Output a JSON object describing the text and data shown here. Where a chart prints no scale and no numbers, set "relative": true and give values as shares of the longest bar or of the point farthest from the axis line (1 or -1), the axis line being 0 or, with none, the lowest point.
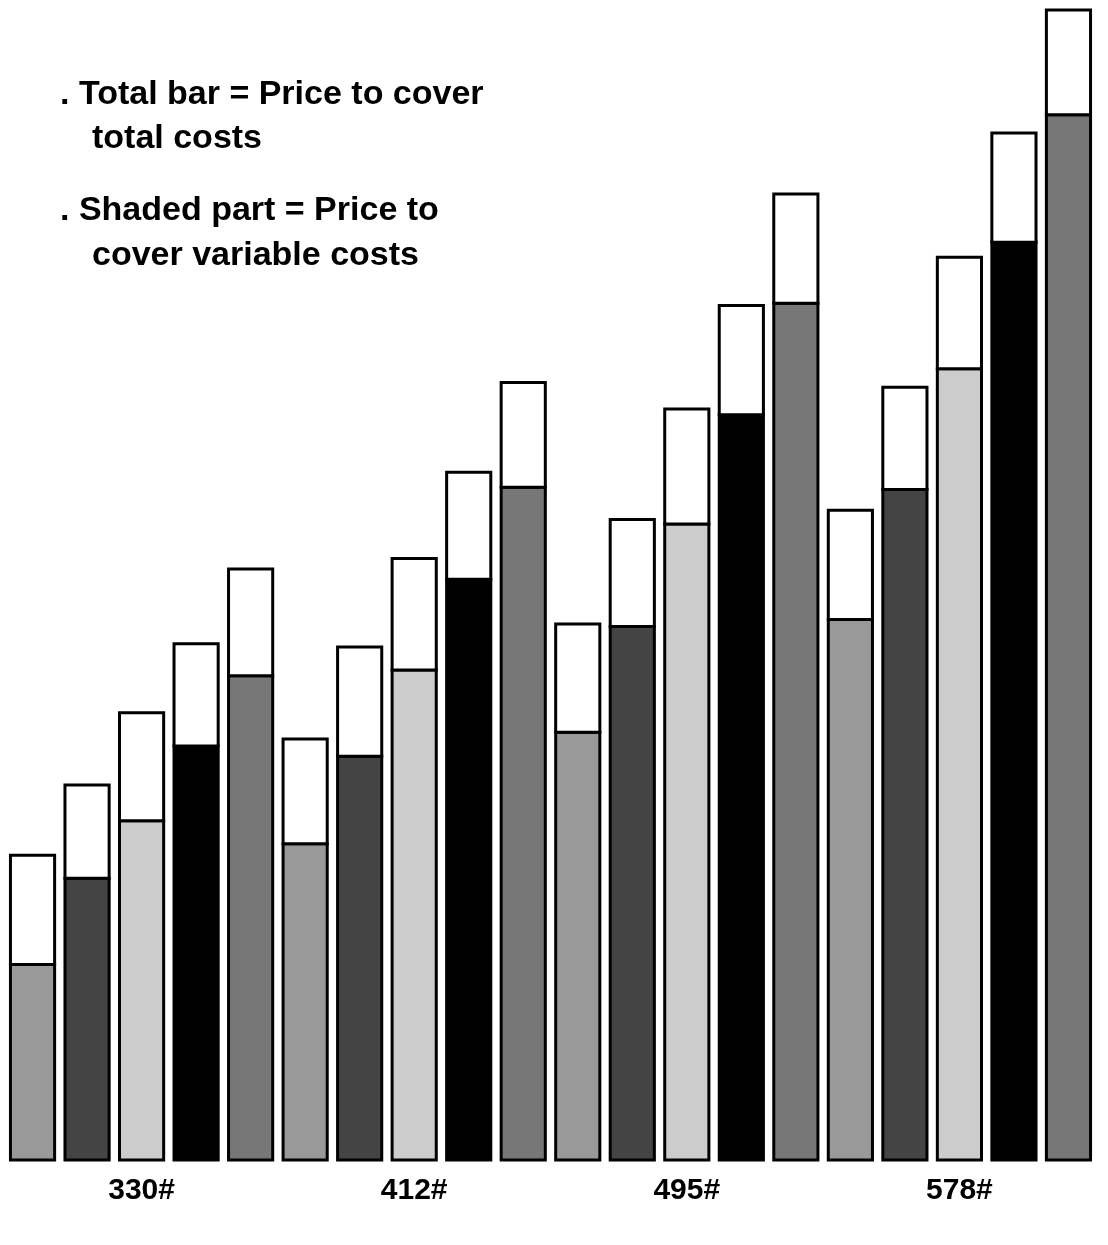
{
  "chart_data": {
    "type": "bar",
    "relative": true,
    "stacked": true,
    "annotations": [
      ". Total bar = Price to cover total costs",
      ". Shaded part = Price to cover variable costs"
    ],
    "categories": [
      null,
      null,
      "330#",
      null,
      null,
      null,
      null,
      "412#",
      null,
      null,
      null,
      null,
      "495#",
      null,
      null,
      null,
      null,
      "578#",
      null,
      null
    ],
    "series": [
      {
        "colors": [
          "#999999",
          "#444444",
          "#cccccc",
          "#000000",
          "#777777",
          "#999999",
          "#444444",
          "#cccccc",
          "#000000",
          "#777777",
          "#999999",
          "#444444",
          "#cccccc",
          "#000000",
          "#777777",
          "#999999",
          "#444444",
          "#cccccc",
          "#000000",
          "#777777"
        ],
        "values": [
          0.17,
          0.245,
          0.295,
          0.36,
          0.421,
          0.275,
          0.351,
          0.426,
          0.505,
          0.585,
          0.372,
          0.464,
          0.553,
          0.648,
          0.745,
          0.47,
          0.583,
          0.688,
          0.798,
          0.909
        ]
      },
      {
        "color": "#ffffff",
        "values": [
          0.095,
          0.081,
          0.094,
          0.089,
          0.093,
          0.091,
          0.095,
          0.097,
          0.093,
          0.091,
          0.094,
          0.093,
          0.1,
          0.095,
          0.095,
          0.095,
          0.089,
          0.097,
          0.095,
          0.091
        ]
      }
    ]
  }
}
